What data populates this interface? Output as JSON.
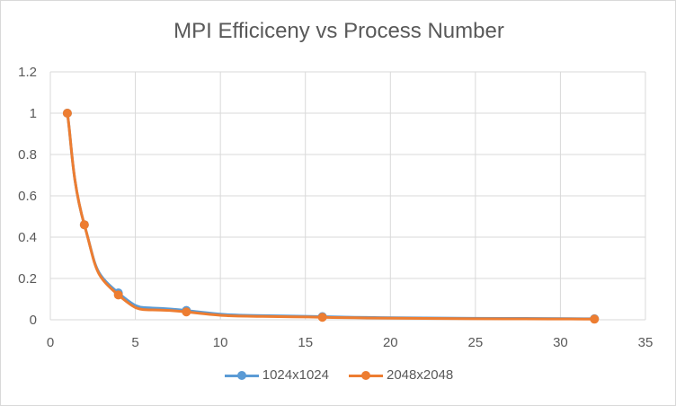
{
  "chart_data": {
    "type": "line",
    "title": "MPI Efficiceny vs Process Number",
    "xlim": [
      0,
      35
    ],
    "ylim": [
      0,
      1.2
    ],
    "xticks": [
      "0",
      "5",
      "10",
      "15",
      "20",
      "25",
      "30",
      "35"
    ],
    "yticks": [
      "0",
      "0.2",
      "0.4",
      "0.6",
      "0.8",
      "1",
      "1.2"
    ],
    "grid": true,
    "smooth": true,
    "legend_position": "bottom",
    "series": [
      {
        "name": "1024x1024",
        "color": "#5b9bd5",
        "x": [
          1,
          2,
          4,
          8,
          16,
          32
        ],
        "y": [
          1.0,
          0.46,
          0.13,
          0.045,
          0.015,
          0.005
        ]
      },
      {
        "name": "2048x2048",
        "color": "#ed7d31",
        "x": [
          1,
          2,
          4,
          8,
          16,
          32
        ],
        "y": [
          1.0,
          0.46,
          0.12,
          0.038,
          0.012,
          0.003
        ]
      }
    ]
  }
}
